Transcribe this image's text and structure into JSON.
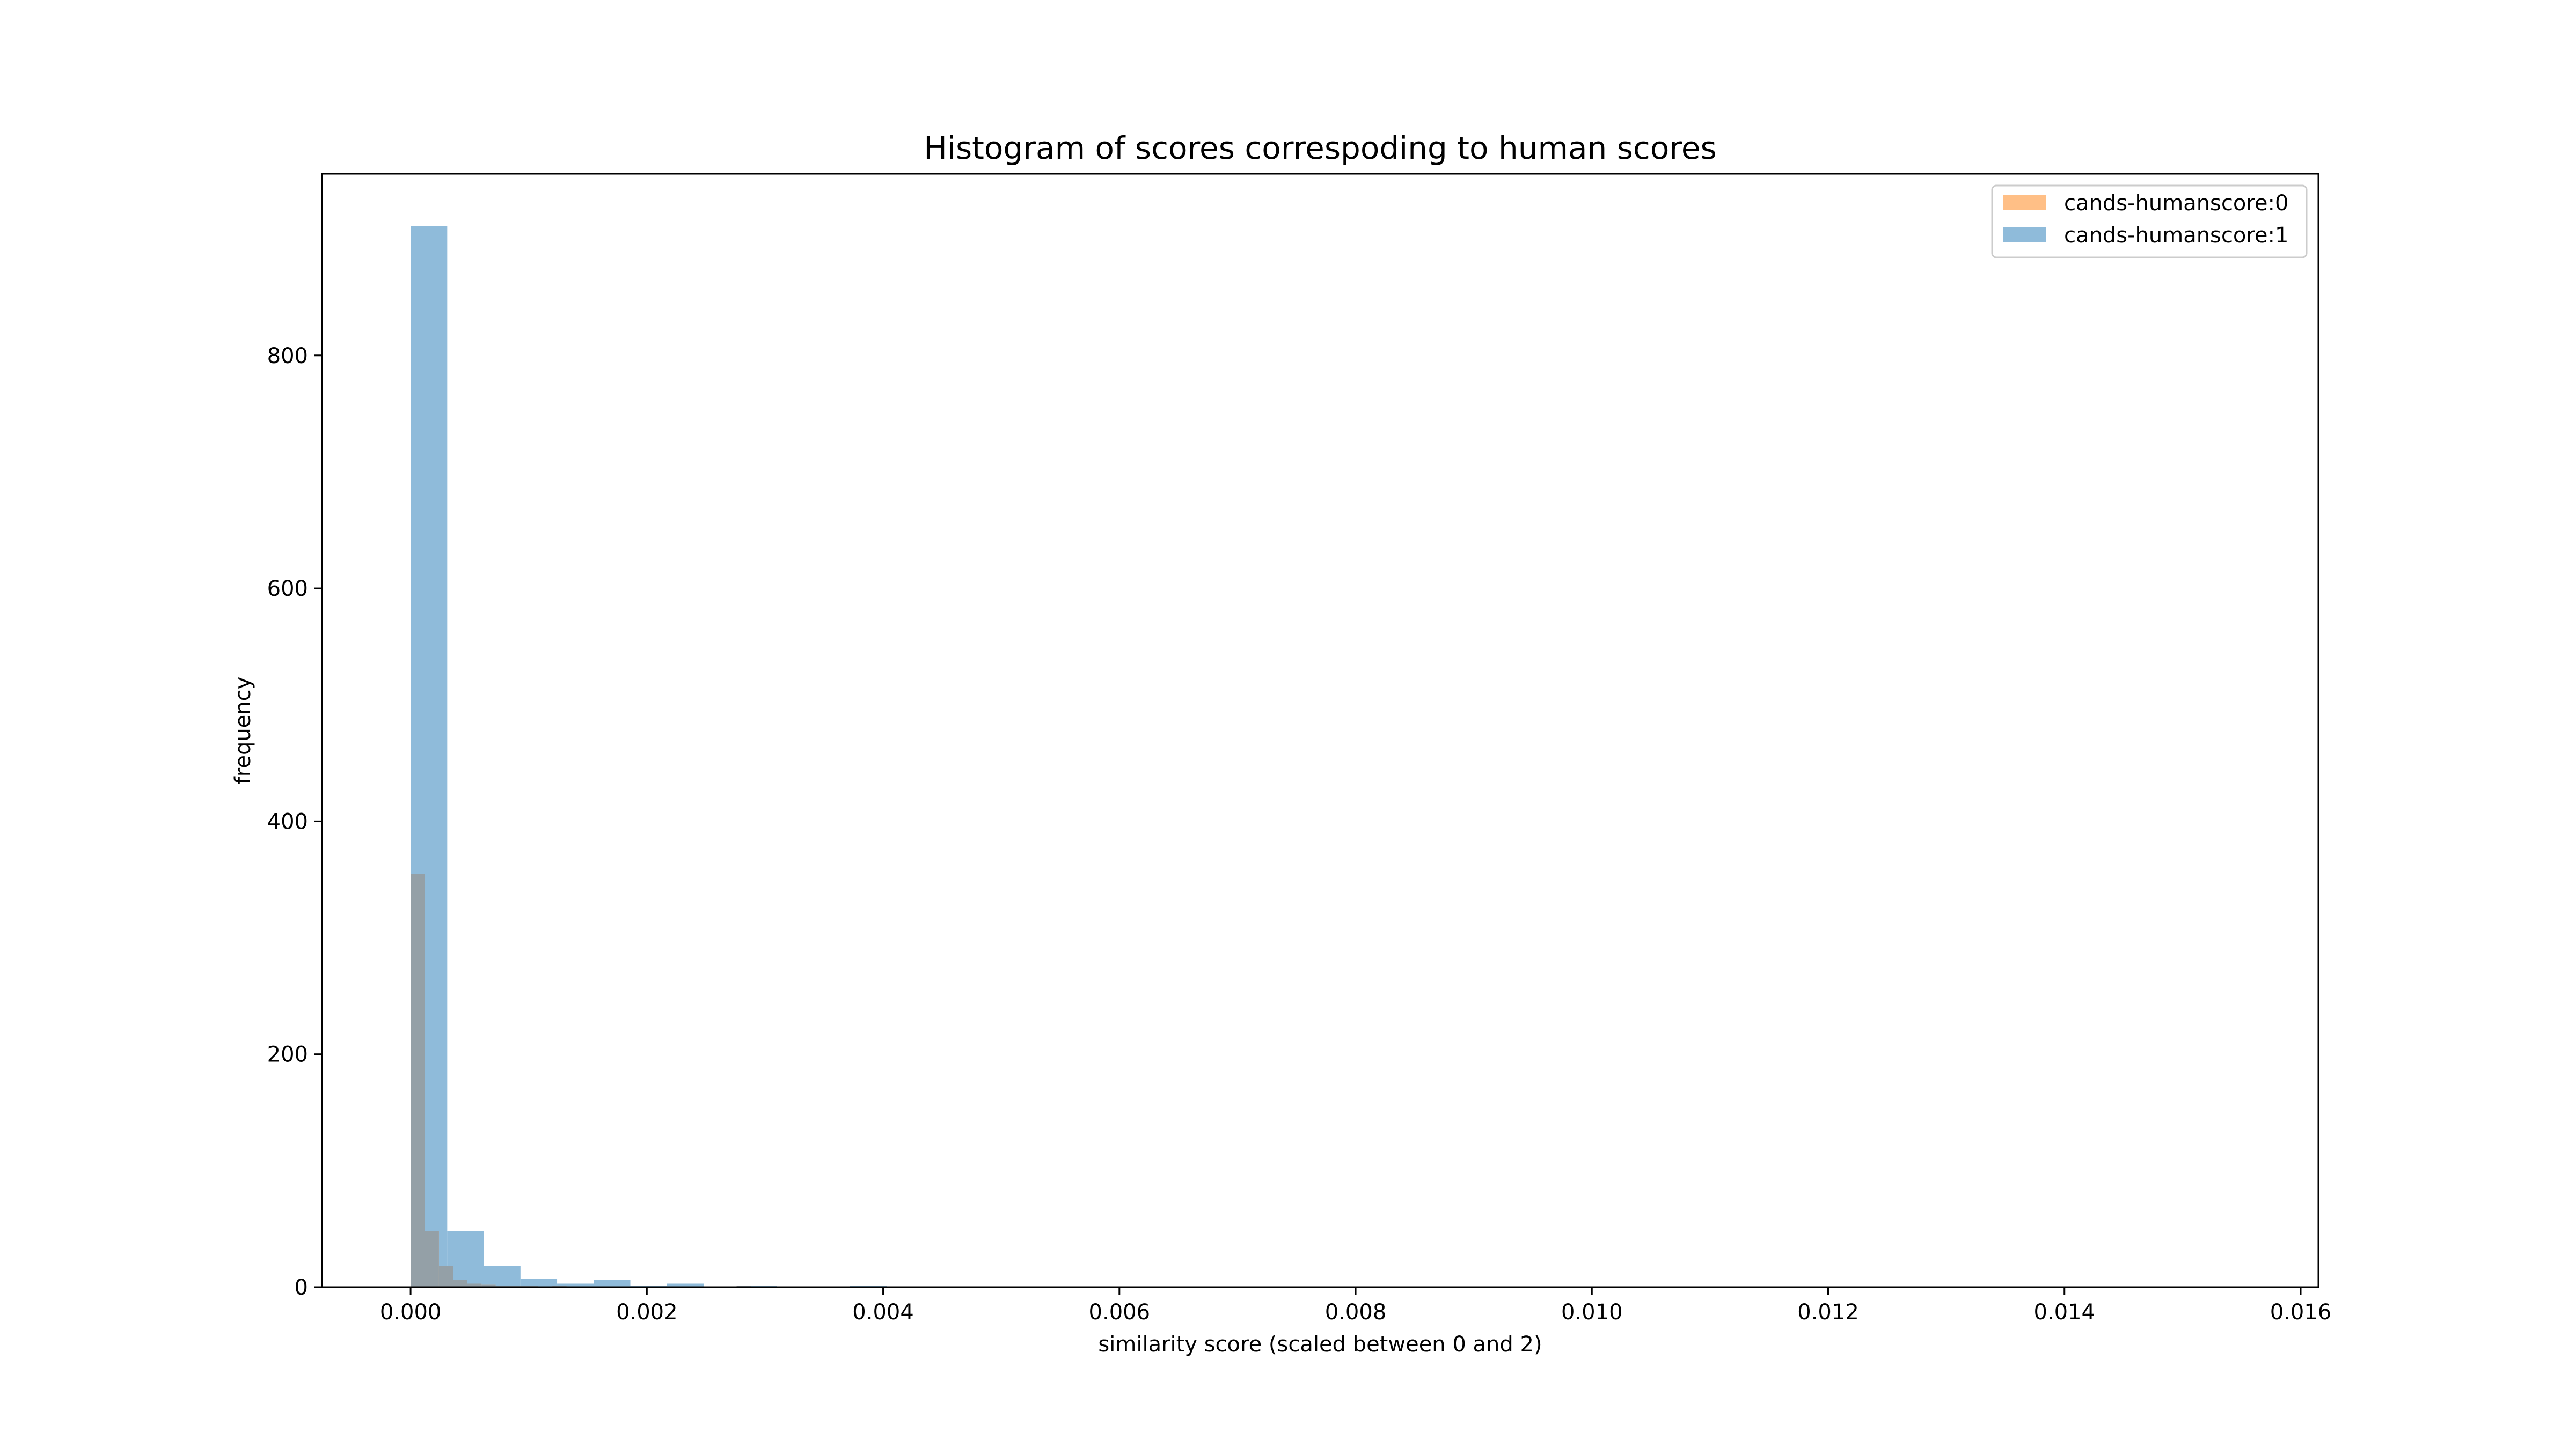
{
  "chart_data": {
    "type": "histogram",
    "title": "Histogram of scores correspoding to human scores",
    "xlabel": "similarity score (scaled between 0 and 2)",
    "ylabel": "frequency",
    "xlim": [
      -0.00075,
      0.01615
    ],
    "ylim": [
      0,
      956
    ],
    "xticks": [
      0.0,
      0.002,
      0.004,
      0.006,
      0.008,
      0.01,
      0.012,
      0.014,
      0.016
    ],
    "xtick_labels": [
      "0.000",
      "0.002",
      "0.004",
      "0.006",
      "0.008",
      "0.010",
      "0.012",
      "0.014",
      "0.016"
    ],
    "yticks": [
      0,
      200,
      400,
      600,
      800
    ],
    "ytick_labels": [
      "0",
      "200",
      "400",
      "600",
      "800"
    ],
    "legend_position": "upper-right",
    "overlap_color": "#94a0a7",
    "series": [
      {
        "name": "cands-humanscore:0",
        "color": "#ffbf86",
        "opacity": 1.0,
        "bin_width": 0.00012,
        "bins": [
          {
            "x0": 0.0,
            "count": 355
          },
          {
            "x0": 0.00012,
            "count": 48
          },
          {
            "x0": 0.00024,
            "count": 18
          },
          {
            "x0": 0.00036,
            "count": 6
          },
          {
            "x0": 0.00048,
            "count": 3
          },
          {
            "x0": 0.0006,
            "count": 2
          },
          {
            "x0": 0.00072,
            "count": 1
          },
          {
            "x0": 0.00084,
            "count": 1
          },
          {
            "x0": 0.00096,
            "count": 1
          },
          {
            "x0": 0.00108,
            "count": 0
          },
          {
            "x0": 0.0012,
            "count": 1
          },
          {
            "x0": 0.00276,
            "count": 1
          },
          {
            "x0": 0.00504,
            "count": 0.5
          }
        ]
      },
      {
        "name": "cands-humanscore:1",
        "color": "#8fbbda",
        "opacity": 1.0,
        "bin_width": 0.00031,
        "bins": [
          {
            "x0": 0.0,
            "count": 911
          },
          {
            "x0": 0.00031,
            "count": 48
          },
          {
            "x0": 0.00062,
            "count": 18
          },
          {
            "x0": 0.00093,
            "count": 7
          },
          {
            "x0": 0.00124,
            "count": 3
          },
          {
            "x0": 0.00155,
            "count": 6
          },
          {
            "x0": 0.00186,
            "count": 1
          },
          {
            "x0": 0.00217,
            "count": 3
          },
          {
            "x0": 0.00248,
            "count": 0
          },
          {
            "x0": 0.00279,
            "count": 1
          },
          {
            "x0": 0.0031,
            "count": 0.5
          },
          {
            "x0": 0.00372,
            "count": 1
          },
          {
            "x0": 0.00961,
            "count": 0.5
          },
          {
            "x0": 0.01519,
            "count": 0.5
          }
        ]
      }
    ]
  }
}
